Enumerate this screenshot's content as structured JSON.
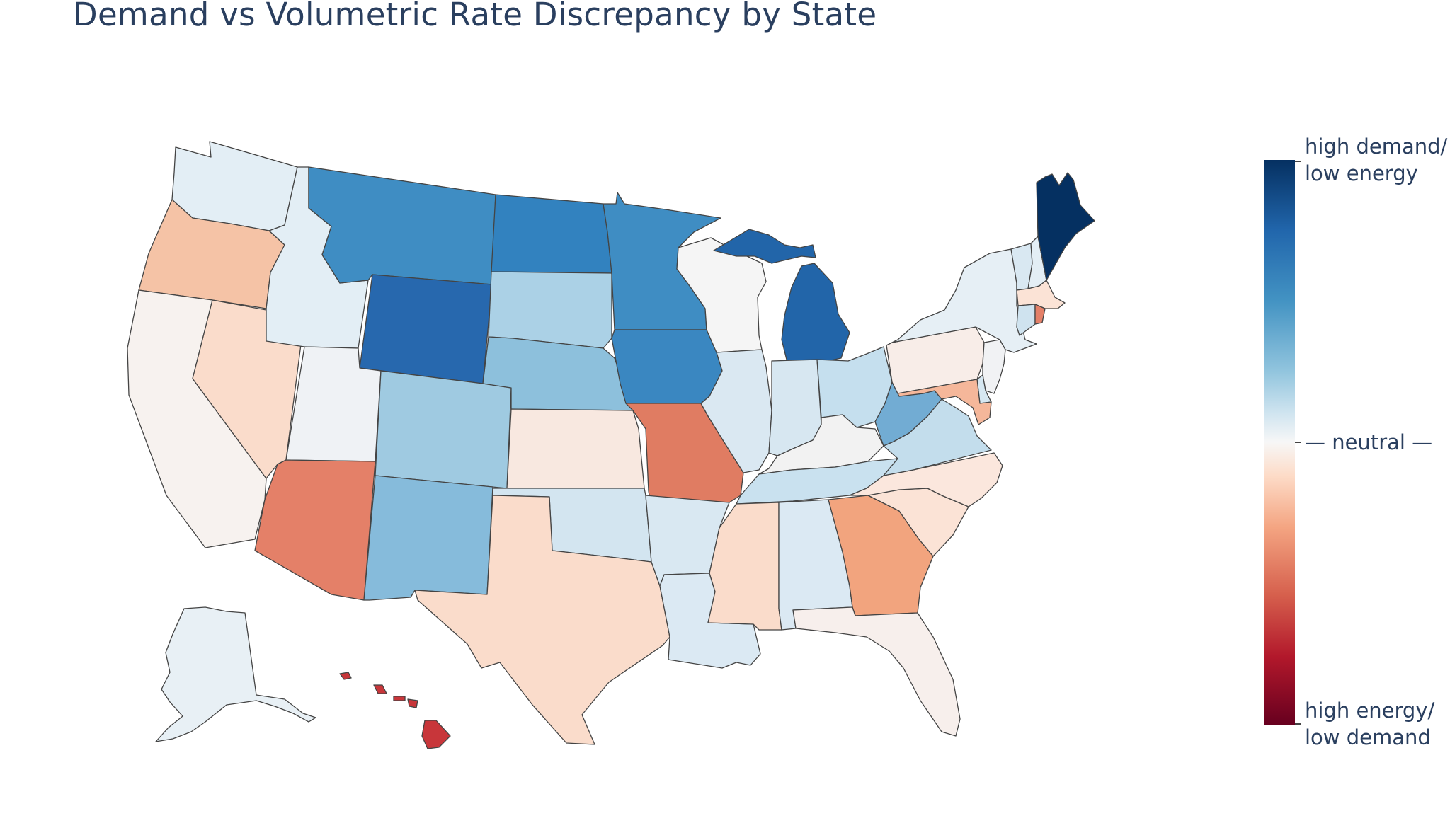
{
  "title": "Demand vs Volumetric Rate Discrepancy by State",
  "colorbar": {
    "top_label_line1": "high demand/",
    "top_label_line2": "low energy",
    "mid_label": "— neutral —",
    "bottom_label_line1": "high energy/",
    "bottom_label_line2": "low demand",
    "colorscale": [
      "#053061",
      "#2166ac",
      "#4393c3",
      "#92c5de",
      "#d1e5f0",
      "#f7f7f7",
      "#fddbc7",
      "#f4a582",
      "#d6604d",
      "#b2182b",
      "#67001f"
    ]
  },
  "state_colors": {
    "WA": "#e3eef5",
    "OR": "#f5c3a6",
    "CA": "#f7f2ef",
    "NV": "#fadccb",
    "ID": "#e3eef5",
    "MT": "#3f8dc3",
    "WY": "#2768ae",
    "UT": "#eff2f5",
    "AZ": "#e48068",
    "CO": "#9fcae1",
    "NM": "#86bbdb",
    "ND": "#3282bf",
    "SD": "#abd1e6",
    "NE": "#8dc0dc",
    "KS": "#f8e8e0",
    "OK": "#d3e5f0",
    "TX": "#fadccb",
    "MN": "#3f8dc3",
    "IA": "#3a87c1",
    "MO": "#e07c62",
    "AR": "#d9e8f2",
    "LA": "#dbe9f3",
    "WI": "#f5f5f5",
    "IL": "#dae8f2",
    "MI": "#2265a9",
    "IN": "#d7e7f1",
    "OH": "#c5dfee",
    "KY": "#f2f2f2",
    "TN": "#c9e1ef",
    "MS": "#fadccb",
    "AL": "#dbe9f3",
    "GA": "#f2a47e",
    "FL": "#f7efec",
    "SC": "#fbe3d6",
    "NC": "#fbe7dd",
    "VA": "#c3ddec",
    "WV": "#72acd3",
    "PA": "#f8ede8",
    "NY": "#e6eff5",
    "VT": "#d9e8f2",
    "NH": "#e3eef5",
    "ME": "#053061",
    "MA": "#fbe3d6",
    "RI": "#e48068",
    "CT": "#cfe3ef",
    "NJ": "#f1f2f4",
    "DE": "#d6e7f1",
    "MD": "#f5b79a",
    "AK": "#e8f0f5",
    "HI": "#c8363a"
  }
}
